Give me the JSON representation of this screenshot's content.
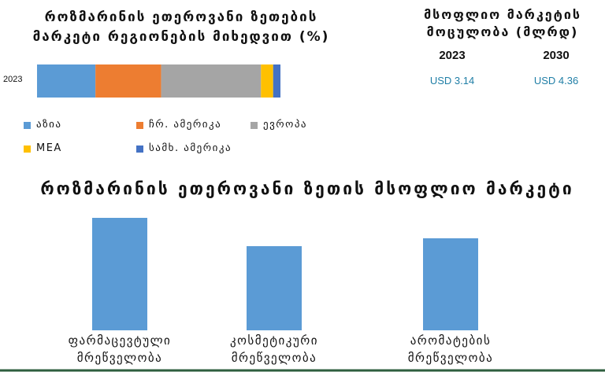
{
  "chart_data": [
    {
      "type": "stacked-bar",
      "orientation": "horizontal",
      "title": "როზმარინის ეთეროვანი ზეთების მარკეტი რეგიონების მიხედვით (%)",
      "categories": [
        "2023"
      ],
      "series": [
        {
          "name": "აზია",
          "color": "#5b9bd5",
          "values": [
            24
          ]
        },
        {
          "name": "ჩრ. ამერიკა",
          "color": "#ed7d31",
          "values": [
            27
          ]
        },
        {
          "name": "ევროპა",
          "color": "#a5a5a5",
          "values": [
            41
          ]
        },
        {
          "name": "MEA",
          "color": "#ffc000",
          "values": [
            5
          ]
        },
        {
          "name": "სამხ. ამერიკა",
          "color": "#4472c4",
          "values": [
            3
          ]
        }
      ],
      "xlim": [
        0,
        100
      ]
    },
    {
      "type": "bar",
      "title": "როზმარინის ეთეროვანი ზეთის მსოფლიო მარკეტი",
      "categories": [
        "ფარმაცევტული მრეწველობა",
        "კოსმეტიკური მრეწველობა",
        "არომატების მრეწველობა"
      ],
      "values": [
        143,
        107,
        117
      ],
      "color": "#5b9bd5",
      "ylim": [
        0,
        160
      ]
    }
  ],
  "market_size": {
    "title": "მსოფლიო მარკეტის მოცულობა (მლრდ)",
    "years": [
      "2023",
      "2030"
    ],
    "values": [
      "USD 3.14",
      "USD 4.36"
    ]
  }
}
